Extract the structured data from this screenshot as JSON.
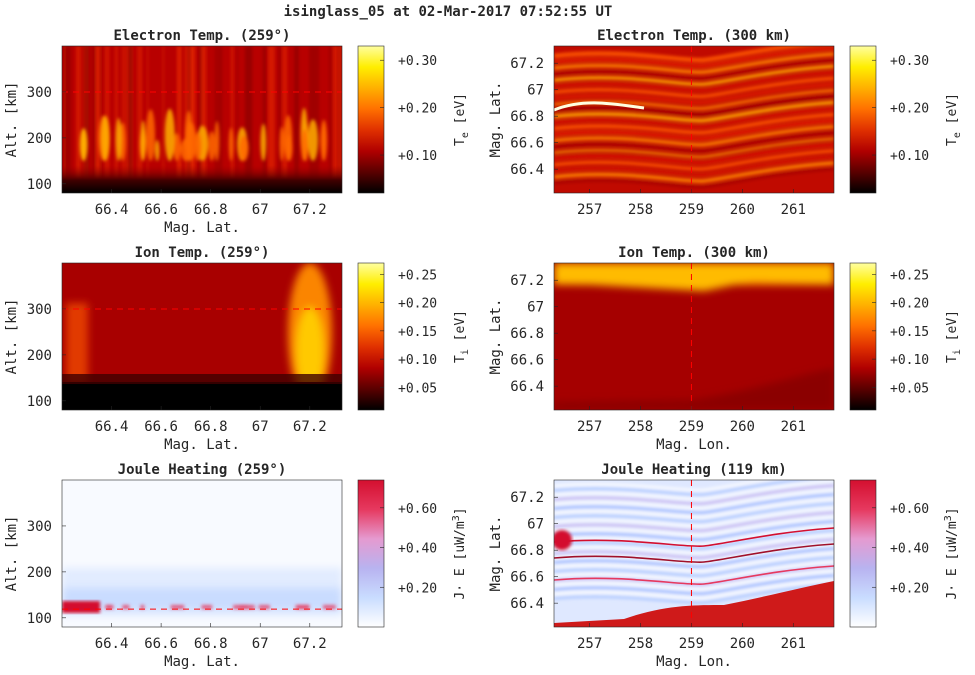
{
  "figure": {
    "title": "isinglass_05 at 02-Mar-2017 07:52:55 UT"
  },
  "colors": {
    "axis": "#262626",
    "background": "#ffffff",
    "marker_line": "#ff0000"
  },
  "colormaps": {
    "hot": [
      "#000000",
      "#5a0000",
      "#b00000",
      "#e03000",
      "#ff7000",
      "#ffb000",
      "#ffee00",
      "#ffffa0"
    ],
    "diverging": [
      "#ffffff",
      "#c9dcff",
      "#b8b3f0",
      "#e59ad0",
      "#e6395f",
      "#d40f2f"
    ]
  },
  "chart_data": [
    {
      "id": "te-alt",
      "type": "heatmap",
      "title": "Electron Temp. (259°)",
      "xlabel": "Mag. Lat.",
      "ylabel": "Alt. [km]",
      "xlim": [
        66.2,
        67.33
      ],
      "ylim": [
        80,
        400
      ],
      "xticks": [
        66.4,
        66.6,
        66.8,
        67.0,
        67.2
      ],
      "xtick_labels": [
        "66.4",
        "66.6",
        "66.8",
        "67",
        "67.2"
      ],
      "yticks": [
        100,
        200,
        300
      ],
      "ytick_labels": [
        "100",
        "200",
        "300"
      ],
      "colormap": "hot",
      "marker_line": {
        "axis": "y",
        "value": 300
      },
      "colorbar": {
        "label_base": "T",
        "label_sub": "e",
        "label_unit": "[eV]",
        "range": [
          0.02,
          0.33
        ],
        "ticks": [
          0.1,
          0.2,
          0.3
        ],
        "tick_labels": [
          "+0.10",
          "+0.20",
          "+0.30"
        ]
      }
    },
    {
      "id": "te-map",
      "type": "heatmap",
      "title": "Electron Temp. (300 km)",
      "xlabel": "",
      "ylabel": "Mag. Lat.",
      "xlim": [
        256.3,
        261.8
      ],
      "ylim": [
        66.22,
        67.33
      ],
      "xticks": [
        257,
        258,
        259,
        260,
        261
      ],
      "xtick_labels": [
        "257",
        "258",
        "259",
        "260",
        "261"
      ],
      "yticks": [
        66.4,
        66.6,
        66.8,
        67.0,
        67.2
      ],
      "ytick_labels": [
        "66.4",
        "66.6",
        "66.8",
        "67",
        "67.2"
      ],
      "colormap": "hot",
      "marker_line": {
        "axis": "x",
        "value": 259
      },
      "colorbar": {
        "label_base": "T",
        "label_sub": "e",
        "label_unit": "[eV]",
        "range": [
          0.02,
          0.33
        ],
        "ticks": [
          0.1,
          0.2,
          0.3
        ],
        "tick_labels": [
          "+0.10",
          "+0.20",
          "+0.30"
        ]
      }
    },
    {
      "id": "ti-alt",
      "type": "heatmap",
      "title": "Ion Temp. (259°)",
      "xlabel": "Mag. Lat.",
      "ylabel": "Alt. [km]",
      "xlim": [
        66.2,
        67.33
      ],
      "ylim": [
        80,
        400
      ],
      "xticks": [
        66.4,
        66.6,
        66.8,
        67.0,
        67.2
      ],
      "xtick_labels": [
        "66.4",
        "66.6",
        "66.8",
        "67",
        "67.2"
      ],
      "yticks": [
        100,
        200,
        300
      ],
      "ytick_labels": [
        "100",
        "200",
        "300"
      ],
      "colormap": "hot",
      "marker_line": {
        "axis": "y",
        "value": 300
      },
      "colorbar": {
        "label_base": "T",
        "label_sub": "i",
        "label_unit": "[eV]",
        "range": [
          0.01,
          0.27
        ],
        "ticks": [
          0.05,
          0.1,
          0.15,
          0.2,
          0.25
        ],
        "tick_labels": [
          "+0.05",
          "+0.10",
          "+0.15",
          "+0.20",
          "+0.25"
        ]
      }
    },
    {
      "id": "ti-map",
      "type": "heatmap",
      "title": "Ion Temp. (300 km)",
      "xlabel": "Mag. Lon.",
      "ylabel": "Mag. Lat.",
      "xlim": [
        256.3,
        261.8
      ],
      "ylim": [
        66.22,
        67.33
      ],
      "xticks": [
        257,
        258,
        259,
        260,
        261
      ],
      "xtick_labels": [
        "257",
        "258",
        "259",
        "260",
        "261"
      ],
      "yticks": [
        66.4,
        66.6,
        66.8,
        67.0,
        67.2
      ],
      "ytick_labels": [
        "66.4",
        "66.6",
        "66.8",
        "67",
        "67.2"
      ],
      "colormap": "hot",
      "marker_line": {
        "axis": "x",
        "value": 259
      },
      "colorbar": {
        "label_base": "T",
        "label_sub": "i",
        "label_unit": "[eV]",
        "range": [
          0.01,
          0.27
        ],
        "ticks": [
          0.05,
          0.1,
          0.15,
          0.2,
          0.25
        ],
        "tick_labels": [
          "+0.05",
          "+0.10",
          "+0.15",
          "+0.20",
          "+0.25"
        ]
      }
    },
    {
      "id": "jh-alt",
      "type": "heatmap",
      "title": "Joule Heating (259°)",
      "xlabel": "Mag. Lat.",
      "ylabel": "Alt. [km]",
      "xlim": [
        66.2,
        67.33
      ],
      "ylim": [
        80,
        400
      ],
      "xticks": [
        66.4,
        66.6,
        66.8,
        67.0,
        67.2
      ],
      "xtick_labels": [
        "66.4",
        "66.6",
        "66.8",
        "67",
        "67.2"
      ],
      "yticks": [
        100,
        200,
        300
      ],
      "ytick_labels": [
        "100",
        "200",
        "300"
      ],
      "colormap": "diverging",
      "marker_line": {
        "axis": "y",
        "value": 119
      },
      "colorbar": {
        "label_base": "J· E [uW/m",
        "label_sup": "3",
        "label_unit": "]",
        "range": [
          0.0,
          0.74
        ],
        "ticks": [
          0.2,
          0.4,
          0.6
        ],
        "tick_labels": [
          "+0.20",
          "+0.40",
          "+0.60"
        ]
      }
    },
    {
      "id": "jh-map",
      "type": "heatmap",
      "title": "Joule Heating (119 km)",
      "xlabel": "Mag. Lon.",
      "ylabel": "Mag. Lat.",
      "xlim": [
        256.3,
        261.8
      ],
      "ylim": [
        66.22,
        67.33
      ],
      "xticks": [
        257,
        258,
        259,
        260,
        261
      ],
      "xtick_labels": [
        "257",
        "258",
        "259",
        "260",
        "261"
      ],
      "yticks": [
        66.4,
        66.6,
        66.8,
        67.0,
        67.2
      ],
      "ytick_labels": [
        "66.4",
        "66.6",
        "66.8",
        "67",
        "67.2"
      ],
      "colormap": "diverging",
      "marker_line": {
        "axis": "x",
        "value": 259
      },
      "colorbar": {
        "label_base": "J· E [uW/m",
        "label_sup": "3",
        "label_unit": "]",
        "range": [
          0.0,
          0.74
        ],
        "ticks": [
          0.2,
          0.4,
          0.6
        ],
        "tick_labels": [
          "+0.20",
          "+0.40",
          "+0.60"
        ]
      }
    }
  ]
}
